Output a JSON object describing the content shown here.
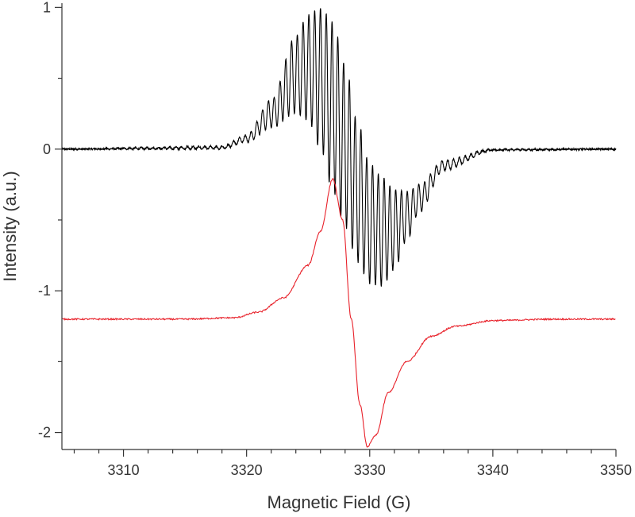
{
  "chart_data": {
    "type": "line",
    "title": "",
    "xlabel": "Magnetic Field (G)",
    "ylabel": "Intensity (a.u.)",
    "xlim": [
      3305,
      3350
    ],
    "ylim": [
      -2.12,
      1.03
    ],
    "x_ticks": [
      3310,
      3320,
      3330,
      3340,
      3350
    ],
    "x_tick_labels": [
      "3310",
      "3320",
      "3330",
      "3340",
      "3350"
    ],
    "y_ticks": [
      1,
      0,
      -1,
      -2
    ],
    "y_tick_labels": [
      "1",
      "0",
      "-1",
      "-2"
    ],
    "grid": false,
    "legend": "none",
    "series": [
      {
        "color": "#000000",
        "baseline": 0.0,
        "description_points": {
          "x": [
            3305,
            3318,
            3320,
            3322,
            3324,
            3325,
            3326,
            3327,
            3328,
            3329,
            3330,
            3331,
            3332,
            3333,
            3334,
            3336,
            3340,
            3350
          ],
          "upper_envelope": [
            0.0,
            0.02,
            0.1,
            0.35,
            0.8,
            0.95,
            1.0,
            0.9,
            0.6,
            0.2,
            -0.1,
            -0.2,
            -0.28,
            -0.3,
            -0.25,
            -0.08,
            0.0,
            0.0
          ],
          "lower_envelope": [
            0.0,
            0.0,
            0.05,
            0.15,
            0.25,
            0.2,
            0.0,
            -0.3,
            -0.55,
            -0.8,
            -0.95,
            -0.97,
            -0.85,
            -0.65,
            -0.45,
            -0.15,
            -0.01,
            0.0
          ]
        },
        "hyperfine_period": 0.47
      },
      {
        "color": "#e8212a",
        "baseline": -1.2,
        "x": [
          3305,
          3315,
          3319,
          3321,
          3323,
          3325,
          3326,
          3327,
          3327.8,
          3328.5,
          3329.2,
          3329.8,
          3330.5,
          3331.5,
          3333,
          3335,
          3337,
          3340,
          3345,
          3350
        ],
        "y": [
          -1.2,
          -1.2,
          -1.19,
          -1.15,
          -1.05,
          -0.82,
          -0.58,
          -0.21,
          -0.5,
          -1.2,
          -1.8,
          -2.1,
          -2.02,
          -1.72,
          -1.5,
          -1.32,
          -1.25,
          -1.21,
          -1.2,
          -1.2
        ]
      }
    ]
  }
}
